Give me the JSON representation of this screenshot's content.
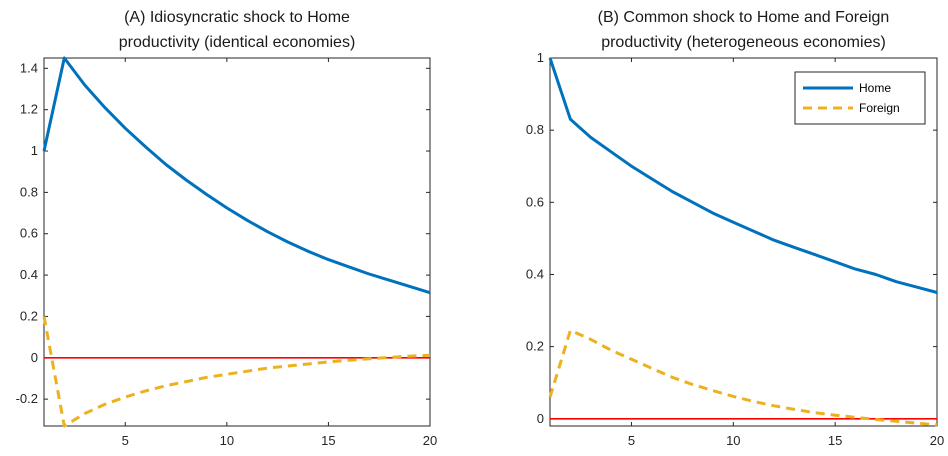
{
  "chart_data": [
    {
      "type": "line",
      "title_lines": [
        "(A) Idiosyncratic shock to Home",
        "productivity (identical economies)"
      ],
      "xlim": [
        1,
        20
      ],
      "ylim": [
        -0.33,
        1.45
      ],
      "xticks": [
        5,
        10,
        15,
        20
      ],
      "yticks": [
        -0.2,
        0,
        0.2,
        0.4,
        0.6,
        0.8,
        1,
        1.2,
        1.4
      ],
      "ytick_labels": [
        "-0.2",
        "0",
        "0.2",
        "0.4",
        "0.6",
        "0.8",
        "1",
        "1.2",
        "1.4"
      ],
      "x": [
        1,
        2,
        3,
        4,
        5,
        6,
        7,
        8,
        9,
        10,
        11,
        12,
        13,
        14,
        15,
        16,
        17,
        18,
        19,
        20
      ],
      "series": [
        {
          "values": [
            1.0,
            1.45,
            1.32,
            1.21,
            1.11,
            1.02,
            0.935,
            0.86,
            0.79,
            0.725,
            0.665,
            0.61,
            0.56,
            0.515,
            0.475,
            0.44,
            0.405,
            0.375,
            0.345,
            0.315
          ],
          "color": "#0072BD",
          "style": "solid"
        },
        {
          "values": [
            0.2,
            -0.33,
            -0.27,
            -0.225,
            -0.19,
            -0.16,
            -0.135,
            -0.115,
            -0.095,
            -0.08,
            -0.065,
            -0.05,
            -0.04,
            -0.03,
            -0.02,
            -0.012,
            -0.005,
            0.002,
            0.008,
            0.012
          ],
          "color": "#EDB120",
          "style": "dashed"
        }
      ],
      "zero_line": {
        "value": 0,
        "color": "#ff0000"
      }
    },
    {
      "type": "line",
      "title_lines": [
        "(B) Common shock to Home and Foreign",
        "productivity (heterogeneous economies)"
      ],
      "xlim": [
        1,
        20
      ],
      "ylim": [
        -0.02,
        1.0
      ],
      "xticks": [
        5,
        10,
        15,
        20
      ],
      "yticks": [
        0,
        0.2,
        0.4,
        0.6,
        0.8,
        1
      ],
      "ytick_labels": [
        "0",
        "0.2",
        "0.4",
        "0.6",
        "0.8",
        "1"
      ],
      "x": [
        1,
        2,
        3,
        4,
        5,
        6,
        7,
        8,
        9,
        10,
        11,
        12,
        13,
        14,
        15,
        16,
        17,
        18,
        19,
        20
      ],
      "series": [
        {
          "name": "Home",
          "values": [
            1.0,
            0.83,
            0.78,
            0.74,
            0.7,
            0.665,
            0.63,
            0.6,
            0.57,
            0.545,
            0.52,
            0.495,
            0.475,
            0.455,
            0.435,
            0.415,
            0.4,
            0.38,
            0.365,
            0.35
          ],
          "color": "#0072BD",
          "style": "solid"
        },
        {
          "name": "Foreign",
          "values": [
            0.06,
            0.245,
            0.22,
            0.19,
            0.165,
            0.14,
            0.115,
            0.095,
            0.078,
            0.062,
            0.048,
            0.036,
            0.026,
            0.017,
            0.01,
            0.004,
            -0.002,
            -0.007,
            -0.012,
            -0.017
          ],
          "color": "#EDB120",
          "style": "dashed"
        }
      ],
      "zero_line": {
        "value": 0,
        "color": "#ff0000"
      },
      "legend": "top-right"
    }
  ]
}
